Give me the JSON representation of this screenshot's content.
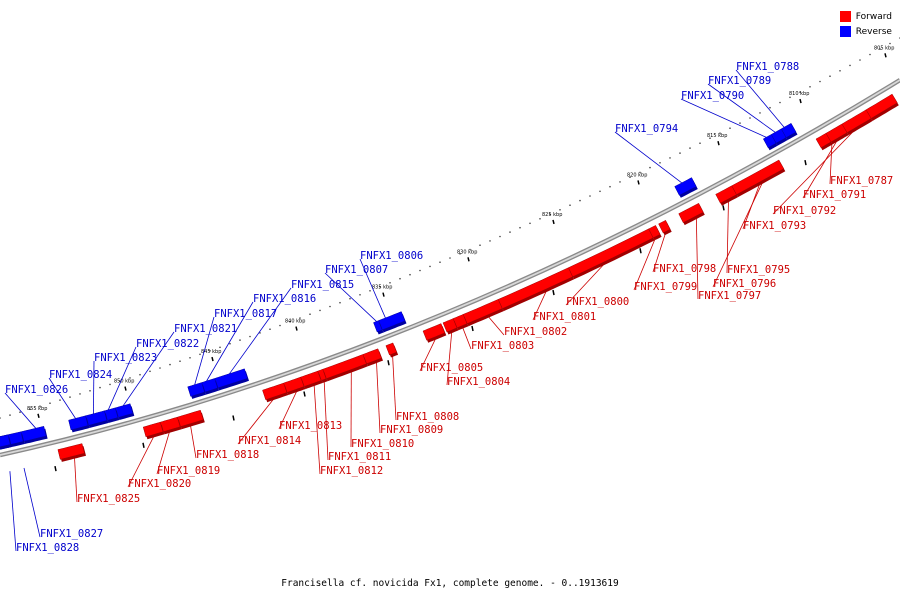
{
  "title": "Francisella cf. novicida Fx1, complete genome. - 0..1913619",
  "legend": [
    {
      "label": "Forward",
      "color": "#ff0000"
    },
    {
      "label": "Reverse",
      "color": "#0000ff"
    }
  ],
  "ticks": [
    "805 kbp",
    "810 kbp",
    "815 kbp",
    "820 kbp",
    "825 kbp",
    "830 kbp",
    "835 kbp",
    "840 kbp",
    "845 kbp",
    "850 kbp",
    "855 kbp"
  ],
  "forward_genes": [
    "FNFX1_0787",
    "FNFX1_0791",
    "FNFX1_0792",
    "FNFX1_0793",
    "FNFX1_0795",
    "FNFX1_0796",
    "FNFX1_0797",
    "FNFX1_0798",
    "FNFX1_0799",
    "FNFX1_0800",
    "FNFX1_0801",
    "FNFX1_0802",
    "FNFX1_0803",
    "FNFX1_0804",
    "FNFX1_0805",
    "FNFX1_0808",
    "FNFX1_0809",
    "FNFX1_0810",
    "FNFX1_0811",
    "FNFX1_0812",
    "FNFX1_0813",
    "FNFX1_0814",
    "FNFX1_0818",
    "FNFX1_0819",
    "FNFX1_0820",
    "FNFX1_0825"
  ],
  "reverse_genes": [
    "FNFX1_0788",
    "FNFX1_0789",
    "FNFX1_0790",
    "FNFX1_0794",
    "FNFX1_0806",
    "FNFX1_0807",
    "FNFX1_0815",
    "FNFX1_0816",
    "FNFX1_0817",
    "FNFX1_0821",
    "FNFX1_0822",
    "FNFX1_0823",
    "FNFX1_0824",
    "FNFX1_0826",
    "FNFX1_0827",
    "FNFX1_0828"
  ]
}
